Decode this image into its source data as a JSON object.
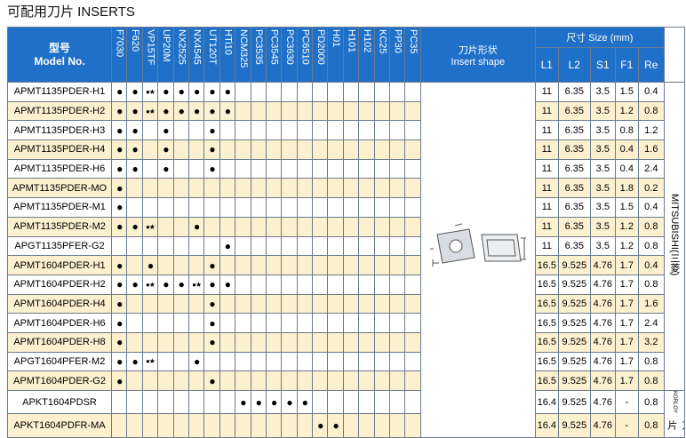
{
  "title": "可配用刀片 INSERTS",
  "header": {
    "model_cn": "型号",
    "model_en": "Model No.",
    "grades": [
      "F7030",
      "F620",
      "VP15TF",
      "UP20M",
      "NX2525",
      "NX4545",
      "UT120T",
      "HTi10",
      "NCM325",
      "PC3535",
      "PC3545",
      "PC3630",
      "PC6510",
      "PD2000",
      "H01",
      "H101",
      "H102",
      "KC25",
      "PP30",
      "PC35"
    ],
    "shape_cn": "刀片形状",
    "shape_en": "Insert shape",
    "size": "尺寸 Size (mm)",
    "dims": [
      "L1",
      "L2",
      "S1",
      "F1",
      "Re"
    ]
  },
  "groups": [
    {
      "maker": "MITSUBISHI(三菱)",
      "rows": [
        {
          "model": "APMT1135PDER-H1",
          "marks": [
            "●",
            "●",
            "●★",
            "●",
            "●",
            "●",
            "●",
            "●",
            null,
            null,
            null,
            null,
            null,
            null,
            null,
            null,
            null,
            null,
            null,
            null
          ],
          "dims": [
            11,
            6.35,
            3.5,
            1.5,
            0.4
          ]
        },
        {
          "model": "APMT1135PDER-H2",
          "marks": [
            "●",
            "●",
            "●★",
            "●",
            "●",
            "●",
            "●",
            "●",
            null,
            null,
            null,
            null,
            null,
            null,
            null,
            null,
            null,
            null,
            null,
            null
          ],
          "dims": [
            11,
            6.35,
            3.5,
            1.2,
            0.8
          ]
        },
        {
          "model": "APMT1135PDER-H3",
          "marks": [
            "●",
            "●",
            null,
            "●",
            null,
            null,
            "●",
            null,
            null,
            null,
            null,
            null,
            null,
            null,
            null,
            null,
            null,
            null,
            null,
            null
          ],
          "dims": [
            11,
            6.35,
            3.5,
            0.8,
            1.2
          ]
        },
        {
          "model": "APMT1135PDER-H4",
          "marks": [
            "●",
            "●",
            null,
            "●",
            null,
            null,
            "●",
            null,
            null,
            null,
            null,
            null,
            null,
            null,
            null,
            null,
            null,
            null,
            null,
            null
          ],
          "dims": [
            11,
            6.35,
            3.5,
            0.4,
            1.6
          ]
        },
        {
          "model": "APMT1135PDER-H6",
          "marks": [
            "●",
            "●",
            null,
            "●",
            null,
            null,
            "●",
            null,
            null,
            null,
            null,
            null,
            null,
            null,
            null,
            null,
            null,
            null,
            null,
            null
          ],
          "dims": [
            11,
            6.35,
            3.5,
            0.4,
            2.4
          ]
        },
        {
          "model": "APMT1135PDER-MO",
          "marks": [
            "●",
            null,
            null,
            null,
            null,
            null,
            null,
            null,
            null,
            null,
            null,
            null,
            null,
            null,
            null,
            null,
            null,
            null,
            null,
            null
          ],
          "dims": [
            11,
            6.35,
            3.5,
            1.8,
            0.2
          ]
        },
        {
          "model": "APMT1135PDER-M1",
          "marks": [
            "●",
            null,
            null,
            null,
            null,
            null,
            null,
            null,
            null,
            null,
            null,
            null,
            null,
            null,
            null,
            null,
            null,
            null,
            null,
            null
          ],
          "dims": [
            11,
            6.35,
            3.5,
            1.5,
            0.4
          ]
        },
        {
          "model": "APMT1135PDER-M2",
          "marks": [
            "●",
            "●",
            "●★",
            null,
            null,
            "●",
            null,
            null,
            null,
            null,
            null,
            null,
            null,
            null,
            null,
            null,
            null,
            null,
            null,
            null
          ],
          "dims": [
            11,
            6.35,
            3.5,
            1.2,
            0.8
          ]
        },
        {
          "model": "APGT1135PFER-G2",
          "marks": [
            null,
            null,
            null,
            null,
            null,
            null,
            null,
            "●",
            null,
            null,
            null,
            null,
            null,
            null,
            null,
            null,
            null,
            null,
            null,
            null
          ],
          "dims": [
            11,
            6.35,
            3.5,
            1.2,
            0.8
          ]
        },
        {
          "model": "APMT1604PDER-H1",
          "marks": [
            "●",
            null,
            "●",
            null,
            null,
            null,
            "●",
            null,
            null,
            null,
            null,
            null,
            null,
            null,
            null,
            null,
            null,
            null,
            null,
            null
          ],
          "dims": [
            16.5,
            9.525,
            4.76,
            1.7,
            0.4
          ]
        },
        {
          "model": "APMT1604PDER-H2",
          "marks": [
            "●",
            "●",
            "●★",
            "●",
            "●",
            "●★",
            "●",
            "●",
            null,
            null,
            null,
            null,
            null,
            null,
            null,
            null,
            null,
            null,
            null,
            null
          ],
          "dims": [
            16.5,
            9.525,
            4.76,
            1.7,
            0.8
          ]
        },
        {
          "model": "APMT1604PDER-H4",
          "marks": [
            "●",
            null,
            null,
            null,
            null,
            null,
            "●",
            null,
            null,
            null,
            null,
            null,
            null,
            null,
            null,
            null,
            null,
            null,
            null,
            null
          ],
          "dims": [
            16.5,
            9.525,
            4.76,
            1.7,
            1.6
          ]
        },
        {
          "model": "APMT1604PDER-H6",
          "marks": [
            "●",
            null,
            null,
            null,
            null,
            null,
            "●",
            null,
            null,
            null,
            null,
            null,
            null,
            null,
            null,
            null,
            null,
            null,
            null,
            null
          ],
          "dims": [
            16.5,
            9.525,
            4.76,
            1.7,
            2.4
          ]
        },
        {
          "model": "APMT1604PDER-H8",
          "marks": [
            "●",
            null,
            null,
            null,
            null,
            null,
            "●",
            null,
            null,
            null,
            null,
            null,
            null,
            null,
            null,
            null,
            null,
            null,
            null,
            null
          ],
          "dims": [
            16.5,
            9.525,
            4.76,
            1.7,
            3.2
          ]
        },
        {
          "model": "APGT1604PFER-M2",
          "marks": [
            "●",
            "●",
            "●★",
            null,
            null,
            "●",
            null,
            null,
            null,
            null,
            null,
            null,
            null,
            null,
            null,
            null,
            null,
            null,
            null,
            null
          ],
          "dims": [
            16.5,
            9.525,
            4.76,
            1.7,
            0.8
          ]
        },
        {
          "model": "APMT1604PDER-G2",
          "marks": [
            "●",
            null,
            null,
            null,
            null,
            null,
            "●",
            null,
            null,
            null,
            null,
            null,
            null,
            null,
            null,
            null,
            null,
            null,
            null,
            null
          ],
          "dims": [
            16.5,
            9.525,
            4.76,
            1.7,
            0.8
          ]
        }
      ]
    },
    {
      "maker": "KORLOY",
      "maker_cn": "刀片",
      "rows": [
        {
          "model": "APKT1604PDSR",
          "marks": [
            null,
            null,
            null,
            null,
            null,
            null,
            null,
            null,
            "●",
            "●",
            "●",
            "●",
            "●",
            null,
            null,
            null,
            null,
            null,
            null,
            null
          ],
          "dims": [
            16.4,
            9.525,
            4.76,
            "-",
            0.8
          ]
        },
        {
          "model": "APKT1604PDFR-MA",
          "marks": [
            null,
            null,
            null,
            null,
            null,
            null,
            null,
            null,
            null,
            null,
            null,
            null,
            null,
            "●",
            "●",
            null,
            null,
            null,
            null,
            null
          ],
          "dims": [
            16.4,
            9.525,
            4.76,
            "-",
            0.8
          ]
        }
      ]
    }
  ]
}
